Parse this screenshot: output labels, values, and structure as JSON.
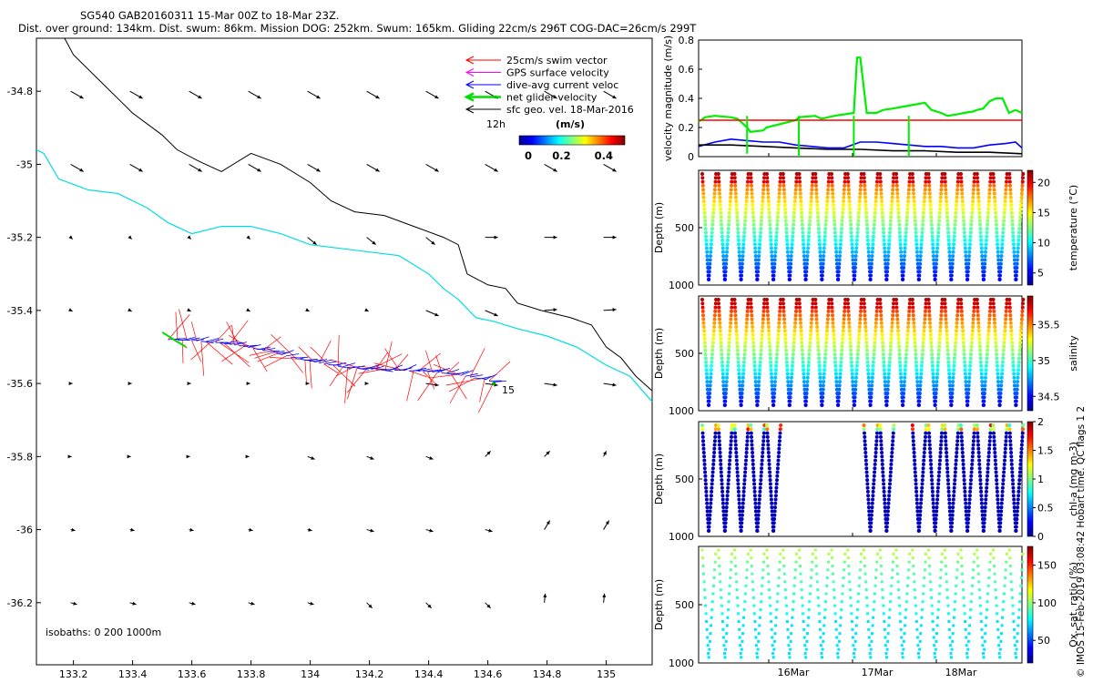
{
  "header": {
    "line1": "SG540 GAB20160311 15-Mar 00Z to 18-Mar 23Z.",
    "line2": "Dist. over ground: 134km. Dist. swum: 86km. Mission DOG: 252km. Swum: 165km. Gliding 22cm/s 296T COG-DAC=26cm/s 299T"
  },
  "map": {
    "legend": [
      {
        "label": "25cm/s swim vector",
        "color": "#ff0000"
      },
      {
        "label": "GPS surface velocity",
        "color": "#ff00ff"
      },
      {
        "label": "dive-avg current veloc",
        "color": "#0000ff"
      },
      {
        "label": "net glider velocity",
        "color": "#00dd00"
      },
      {
        "label": "sfc geo. vel. 18-Mar-2016",
        "color": "#000000"
      }
    ],
    "small_label": "12h",
    "colorbar_title": "(m/s)",
    "colorbar_ticks": [
      "0",
      "0.2",
      "0.4"
    ],
    "isobaths_label": "isobaths: 0   200  1000m",
    "end_label": "15",
    "x_ticks": [
      "133.2",
      "133.4",
      "133.6",
      "133.8",
      "134",
      "134.2",
      "134.4",
      "134.6",
      "134.8",
      "135"
    ],
    "y_ticks": [
      "-34.8",
      "-35",
      "-35.2",
      "-35.4",
      "-35.6",
      "-35.8",
      "-36",
      "-36.2"
    ]
  },
  "chart_data": [
    {
      "type": "line",
      "ylabel": "velocity magnitude (m/s)",
      "ylim": [
        0,
        0.8
      ],
      "y_ticks": [
        "0",
        "0.2",
        "0.4",
        "0.6",
        "0.8"
      ],
      "series": [
        {
          "color": "#00ee00",
          "x": [
            0,
            0.02,
            0.05,
            0.1,
            0.12,
            0.15,
            0.16,
            0.2,
            0.21,
            0.3,
            0.31,
            0.36,
            0.38,
            0.4,
            0.42,
            0.48,
            0.49,
            0.5,
            0.52,
            0.55,
            0.57,
            0.6,
            0.65,
            0.7,
            0.72,
            0.75,
            0.77,
            0.8,
            0.82,
            0.85,
            0.86,
            0.88,
            0.9,
            0.92,
            0.94,
            0.96,
            0.98,
            1
          ],
          "y": [
            0.24,
            0.27,
            0.28,
            0.27,
            0.26,
            0.2,
            0.17,
            0.18,
            0.2,
            0.25,
            0.27,
            0.28,
            0.26,
            0.27,
            0.28,
            0.3,
            0.68,
            0.68,
            0.3,
            0.3,
            0.32,
            0.33,
            0.35,
            0.37,
            0.32,
            0.3,
            0.28,
            0.29,
            0.3,
            0.31,
            0.32,
            0.33,
            0.38,
            0.4,
            0.4,
            0.3,
            0.32,
            0.3
          ]
        },
        {
          "color": "#ff0000",
          "x": [
            0,
            1
          ],
          "y": [
            0.25,
            0.25
          ]
        },
        {
          "color": "#0000ff",
          "x": [
            0,
            0.05,
            0.1,
            0.15,
            0.2,
            0.25,
            0.3,
            0.35,
            0.4,
            0.45,
            0.5,
            0.55,
            0.6,
            0.65,
            0.7,
            0.75,
            0.8,
            0.85,
            0.9,
            0.95,
            0.98,
            1
          ],
          "y": [
            0.07,
            0.1,
            0.12,
            0.11,
            0.1,
            0.1,
            0.08,
            0.07,
            0.06,
            0.06,
            0.1,
            0.1,
            0.09,
            0.08,
            0.07,
            0.07,
            0.06,
            0.06,
            0.08,
            0.09,
            0.1,
            0.06
          ]
        },
        {
          "color": "#000000",
          "x": [
            0,
            0.1,
            0.2,
            0.3,
            0.4,
            0.5,
            0.6,
            0.7,
            0.8,
            0.9,
            1
          ],
          "y": [
            0.08,
            0.08,
            0.07,
            0.06,
            0.05,
            0.05,
            0.04,
            0.04,
            0.03,
            0.03,
            0.02
          ]
        }
      ]
    },
    {
      "type": "scatter",
      "ylabel": "Depth (m)",
      "ylim": [
        0,
        1000
      ],
      "y_ticks": [
        "500",
        "1000"
      ],
      "colorbar_label": "temperature (°C)",
      "colorbar_ticks": [
        "20",
        "15",
        "10",
        "5"
      ],
      "colorbar_range": [
        3,
        22
      ],
      "dives": 20,
      "pattern": "full"
    },
    {
      "type": "scatter",
      "ylabel": "Depth (m)",
      "ylim": [
        0,
        1000
      ],
      "y_ticks": [
        "500",
        "1000"
      ],
      "colorbar_label": "salinity",
      "colorbar_ticks": [
        "35.5",
        "35",
        "34.5"
      ],
      "colorbar_range": [
        34.3,
        35.9
      ],
      "dives": 20,
      "pattern": "full"
    },
    {
      "type": "scatter",
      "ylabel": "Depth (m)",
      "ylim": [
        0,
        1000
      ],
      "y_ticks": [
        "500",
        "1000"
      ],
      "colorbar_label": "chl-a (mg m-3)",
      "colorbar_ticks": [
        "2",
        "1.5",
        "1",
        "0.5",
        "0"
      ],
      "colorbar_range": [
        0,
        2
      ],
      "dives": 20,
      "pattern": "partial"
    },
    {
      "type": "scatter",
      "ylabel": "Depth (m)",
      "ylim": [
        0,
        1000
      ],
      "y_ticks": [
        "500",
        "1000"
      ],
      "colorbar_label": "Ox. sat. ratio (%)",
      "colorbar_ticks": [
        "150",
        "100",
        "50"
      ],
      "colorbar_range": [
        20,
        175
      ],
      "dives": 20,
      "pattern": "sparse"
    }
  ],
  "time_axis": {
    "ticks": [
      "16Mar",
      "17Mar",
      "18Mar"
    ]
  },
  "side_note": "© IMOS 15-Feb-2019 03:08:42 Hobart time. QC flags 1  2"
}
